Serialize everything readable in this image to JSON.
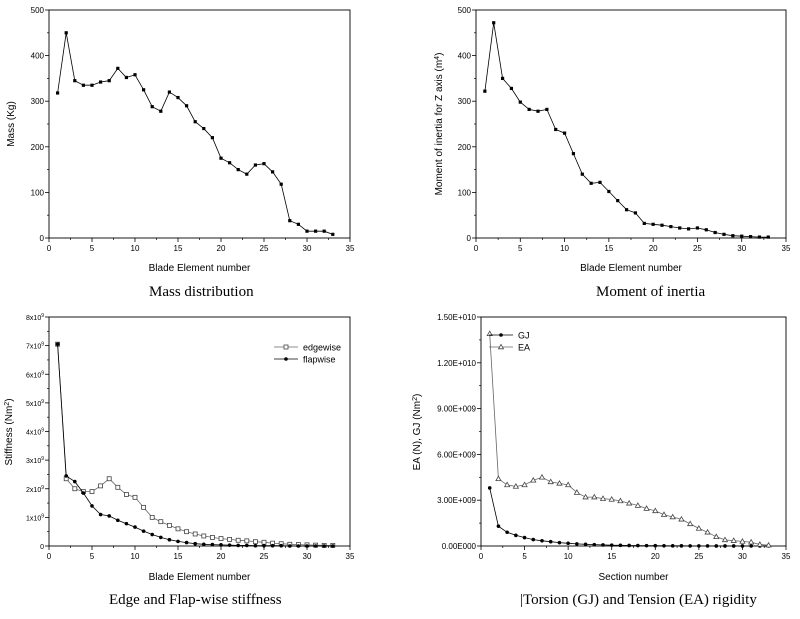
{
  "captions": [
    "Mass distribution",
    "Moment of inertia",
    "Edge and Flap-wise stiffness",
    "|Torsion (GJ) and Tension (EA) rigidity"
  ],
  "chart_data": [
    {
      "type": "line",
      "caption": "Mass distribution",
      "xlabel": "Blade Element number",
      "ylabel": "Mass (Kg)",
      "xlim": [
        0,
        35
      ],
      "ylim": [
        0,
        500
      ],
      "xticks": [
        "0",
        "5",
        "10",
        "15",
        "20",
        "25",
        "30",
        "35"
      ],
      "yticks": [
        "0",
        "100",
        "200",
        "300",
        "400",
        "500"
      ],
      "series": [
        {
          "marker": "filled-square",
          "x": [
            1,
            2,
            3,
            4,
            5,
            6,
            7,
            8,
            9,
            10,
            11,
            12,
            13,
            14,
            15,
            16,
            17,
            18,
            19,
            20,
            21,
            22,
            23,
            24,
            25,
            26,
            27,
            28,
            29,
            30,
            31,
            32,
            33
          ],
          "values": [
            318,
            450,
            345,
            335,
            335,
            342,
            345,
            372,
            352,
            358,
            325,
            288,
            278,
            320,
            308,
            290,
            255,
            240,
            220,
            175,
            165,
            150,
            140,
            160,
            163,
            145,
            118,
            38,
            30,
            15,
            15,
            15,
            8
          ]
        }
      ]
    },
    {
      "type": "line",
      "caption": "Moment of inertia",
      "xlabel": "Blade Element number",
      "ylabel": "Moment of inertia for Z axis (m",
      "ylabel_sup": "4",
      "ylabel_end": ")",
      "xlim": [
        0,
        35
      ],
      "ylim": [
        0,
        500
      ],
      "xticks": [
        "0",
        "5",
        "10",
        "15",
        "20",
        "25",
        "30",
        "35"
      ],
      "yticks": [
        "0",
        "100",
        "200",
        "300",
        "400",
        "500"
      ],
      "series": [
        {
          "marker": "filled-square",
          "x": [
            1,
            2,
            3,
            4,
            5,
            6,
            7,
            8,
            9,
            10,
            11,
            12,
            13,
            14,
            15,
            16,
            17,
            18,
            19,
            20,
            21,
            22,
            23,
            24,
            25,
            26,
            27,
            28,
            29,
            30,
            31,
            32,
            33
          ],
          "values": [
            322,
            472,
            350,
            328,
            298,
            282,
            278,
            282,
            238,
            230,
            185,
            140,
            120,
            122,
            102,
            82,
            62,
            55,
            32,
            30,
            28,
            25,
            22,
            20,
            22,
            18,
            12,
            8,
            5,
            4,
            3,
            2,
            2
          ]
        }
      ]
    },
    {
      "type": "line",
      "caption": "Edge and Flap-wise stiffness",
      "xlabel": "Blade Element number",
      "ylabel": "Stiffness (Nm",
      "ylabel_sup": "2",
      "ylabel_end": ")",
      "xlim": [
        0,
        35
      ],
      "ylim": [
        0,
        8
      ],
      "xticks": [
        "0",
        "5",
        "10",
        "15",
        "20",
        "25",
        "30",
        "35"
      ],
      "yticks_base": [
        "0",
        "1x10",
        "2x10",
        "3x10",
        "4x10",
        "5x10",
        "6x10",
        "7x10",
        "8x10"
      ],
      "yticks_sup": [
        "",
        "9",
        "9",
        "9",
        "9",
        "9",
        "9",
        "9",
        "9"
      ],
      "legend_position": "top-right",
      "series": [
        {
          "name": "edgewise",
          "marker": "open-square",
          "x": [
            1,
            2,
            3,
            4,
            5,
            6,
            7,
            8,
            9,
            10,
            11,
            12,
            13,
            14,
            15,
            16,
            17,
            18,
            19,
            20,
            21,
            22,
            23,
            24,
            25,
            26,
            27,
            28,
            29,
            30,
            31,
            32,
            33
          ],
          "values": [
            7.05,
            2.35,
            2.0,
            1.9,
            1.9,
            2.1,
            2.35,
            2.05,
            1.8,
            1.7,
            1.35,
            1.0,
            0.85,
            0.72,
            0.6,
            0.5,
            0.42,
            0.35,
            0.3,
            0.26,
            0.23,
            0.2,
            0.18,
            0.15,
            0.13,
            0.1,
            0.08,
            0.06,
            0.05,
            0.04,
            0.03,
            0.02,
            0.02
          ]
        },
        {
          "name": "flapwise",
          "marker": "filled-circle",
          "x": [
            1,
            2,
            3,
            4,
            5,
            6,
            7,
            8,
            9,
            10,
            11,
            12,
            13,
            14,
            15,
            16,
            17,
            18,
            19,
            20,
            21,
            22,
            23,
            24,
            25,
            26,
            27,
            28,
            29,
            30,
            31,
            32,
            33
          ],
          "values": [
            7.05,
            2.45,
            2.25,
            1.85,
            1.4,
            1.1,
            1.05,
            0.9,
            0.78,
            0.66,
            0.52,
            0.4,
            0.3,
            0.22,
            0.16,
            0.12,
            0.08,
            0.06,
            0.05,
            0.04,
            0.03,
            0.02,
            0.02,
            0.01,
            0.01,
            0.01,
            0.01,
            0.0,
            0.0,
            0.0,
            0.0,
            0.0,
            0.0
          ]
        }
      ]
    },
    {
      "type": "line",
      "caption": "|Torsion (GJ) and Tension (EA) rigidity",
      "xlabel": "Section number",
      "ylabel": "EA (N), GJ (Nm",
      "ylabel_sup": "2",
      "ylabel_end": ")",
      "xlim": [
        0,
        35
      ],
      "ylim": [
        0,
        15000000000
      ],
      "xticks": [
        "0",
        "5",
        "10",
        "15",
        "20",
        "25",
        "30",
        "35"
      ],
      "yticks": [
        "0.00E000",
        "3.00E+009",
        "6.00E+009",
        "9.00E+009",
        "1.20E+010",
        "1.50E+010"
      ],
      "legend_position": "top-left",
      "series": [
        {
          "name": "GJ",
          "marker": "filled-circle",
          "x": [
            1,
            2,
            3,
            4,
            5,
            6,
            7,
            8,
            9,
            10,
            11,
            12,
            13,
            14,
            15,
            16,
            17,
            18,
            19,
            20,
            21,
            22,
            23,
            24,
            25,
            26,
            27,
            28,
            29,
            30,
            31,
            32,
            33
          ],
          "values": [
            3800000000,
            1300000000,
            900000000,
            700000000,
            550000000,
            420000000,
            340000000,
            280000000,
            220000000,
            180000000,
            140000000,
            110000000,
            90000000,
            70000000,
            55000000,
            45000000,
            35000000,
            28000000,
            22000000,
            18000000,
            15000000,
            12000000,
            10000000,
            8000000,
            6000000,
            5000000,
            4000000,
            3000000,
            2500000,
            2000000,
            1500000,
            1000000,
            500000
          ]
        },
        {
          "name": "EA",
          "marker": "open-triangle",
          "x": [
            1,
            2,
            3,
            4,
            5,
            6,
            7,
            8,
            9,
            10,
            11,
            12,
            13,
            14,
            15,
            16,
            17,
            18,
            19,
            20,
            21,
            22,
            23,
            24,
            25,
            26,
            27,
            28,
            29,
            30,
            31,
            32,
            33
          ],
          "values": [
            13900000000,
            4400000000,
            4000000000,
            3900000000,
            4000000000,
            4300000000,
            4500000000,
            4200000000,
            4100000000,
            4000000000,
            3500000000,
            3200000000,
            3200000000,
            3100000000,
            3050000000,
            2950000000,
            2800000000,
            2650000000,
            2450000000,
            2300000000,
            2050000000,
            1900000000,
            1750000000,
            1450000000,
            1150000000,
            900000000,
            600000000,
            400000000,
            350000000,
            300000000,
            250000000,
            100000000,
            50000000
          ]
        }
      ]
    }
  ]
}
